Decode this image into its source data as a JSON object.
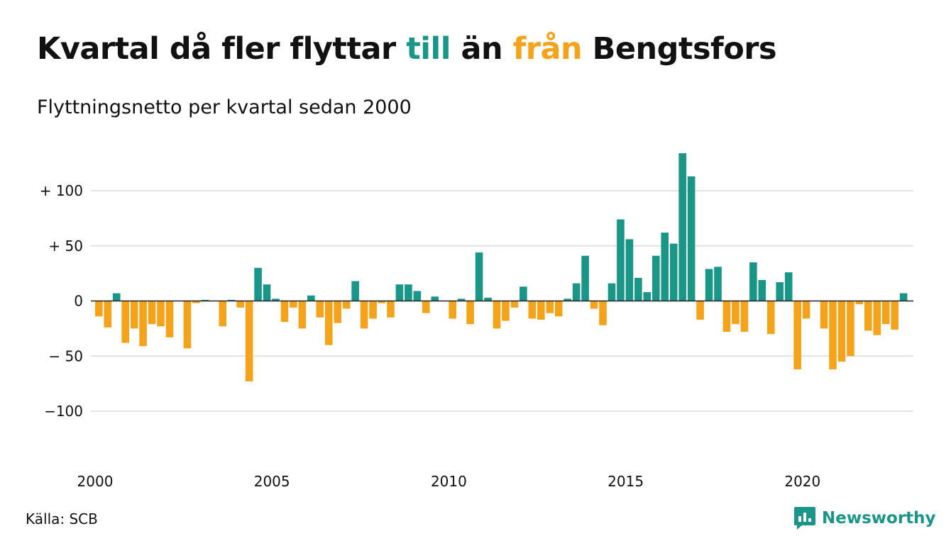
{
  "title": {
    "part1": "Kvartal då fler flyttar ",
    "till": "till",
    "part2": " än ",
    "fran": "från",
    "part3": " Bengtsfors"
  },
  "subtitle": "Flyttningsnetto per kvartal sedan 2000",
  "source": "Källa: SCB",
  "brand": {
    "name": "Newsworthy",
    "icon": "newsworthy-logo-icon"
  },
  "colors": {
    "positive": "#1a9688",
    "negative": "#f5a31b",
    "grid": "#e3e3e3",
    "zero_line": "#222222",
    "text": "#111111"
  },
  "chart_data": {
    "type": "bar",
    "title": "Kvartal då fler flyttar till än från Bengtsfors",
    "subtitle": "Flyttningsnetto per kvartal sedan 2000",
    "x_start": "2000 Q1",
    "x_ticks": [
      "2000",
      "2005",
      "2010",
      "2015",
      "2020"
    ],
    "y_ticks": [
      {
        "value": 100,
        "label": "+ 100"
      },
      {
        "value": 50,
        "label": "+  50"
      },
      {
        "value": 0,
        "label": "0"
      },
      {
        "value": -50,
        "label": "− 50"
      },
      {
        "value": -100,
        "label": "−100"
      }
    ],
    "ylim": [
      -140,
      140
    ],
    "grid": true,
    "values": [
      -14,
      -24,
      7,
      -38,
      -25,
      -41,
      -21,
      -23,
      -33,
      0,
      -43,
      -2,
      1,
      0,
      -23,
      1,
      -6,
      -73,
      30,
      15,
      2,
      -19,
      -6,
      -25,
      5,
      -15,
      -40,
      -20,
      -7,
      18,
      -25,
      -16,
      -2,
      -15,
      15,
      15,
      9,
      -11,
      4,
      0,
      -16,
      2,
      -21,
      44,
      3,
      -25,
      -18,
      -6,
      13,
      -16,
      -17,
      -11,
      -14,
      2,
      16,
      41,
      -7,
      -22,
      16,
      74,
      56,
      21,
      8,
      41,
      62,
      52,
      134,
      113,
      -17,
      29,
      31,
      -28,
      -21,
      -28,
      35,
      19,
      -30,
      17,
      26,
      -62,
      -16,
      0,
      -25,
      -62,
      -55,
      -50,
      -3,
      -27,
      -31,
      -21,
      -26,
      7
    ]
  }
}
